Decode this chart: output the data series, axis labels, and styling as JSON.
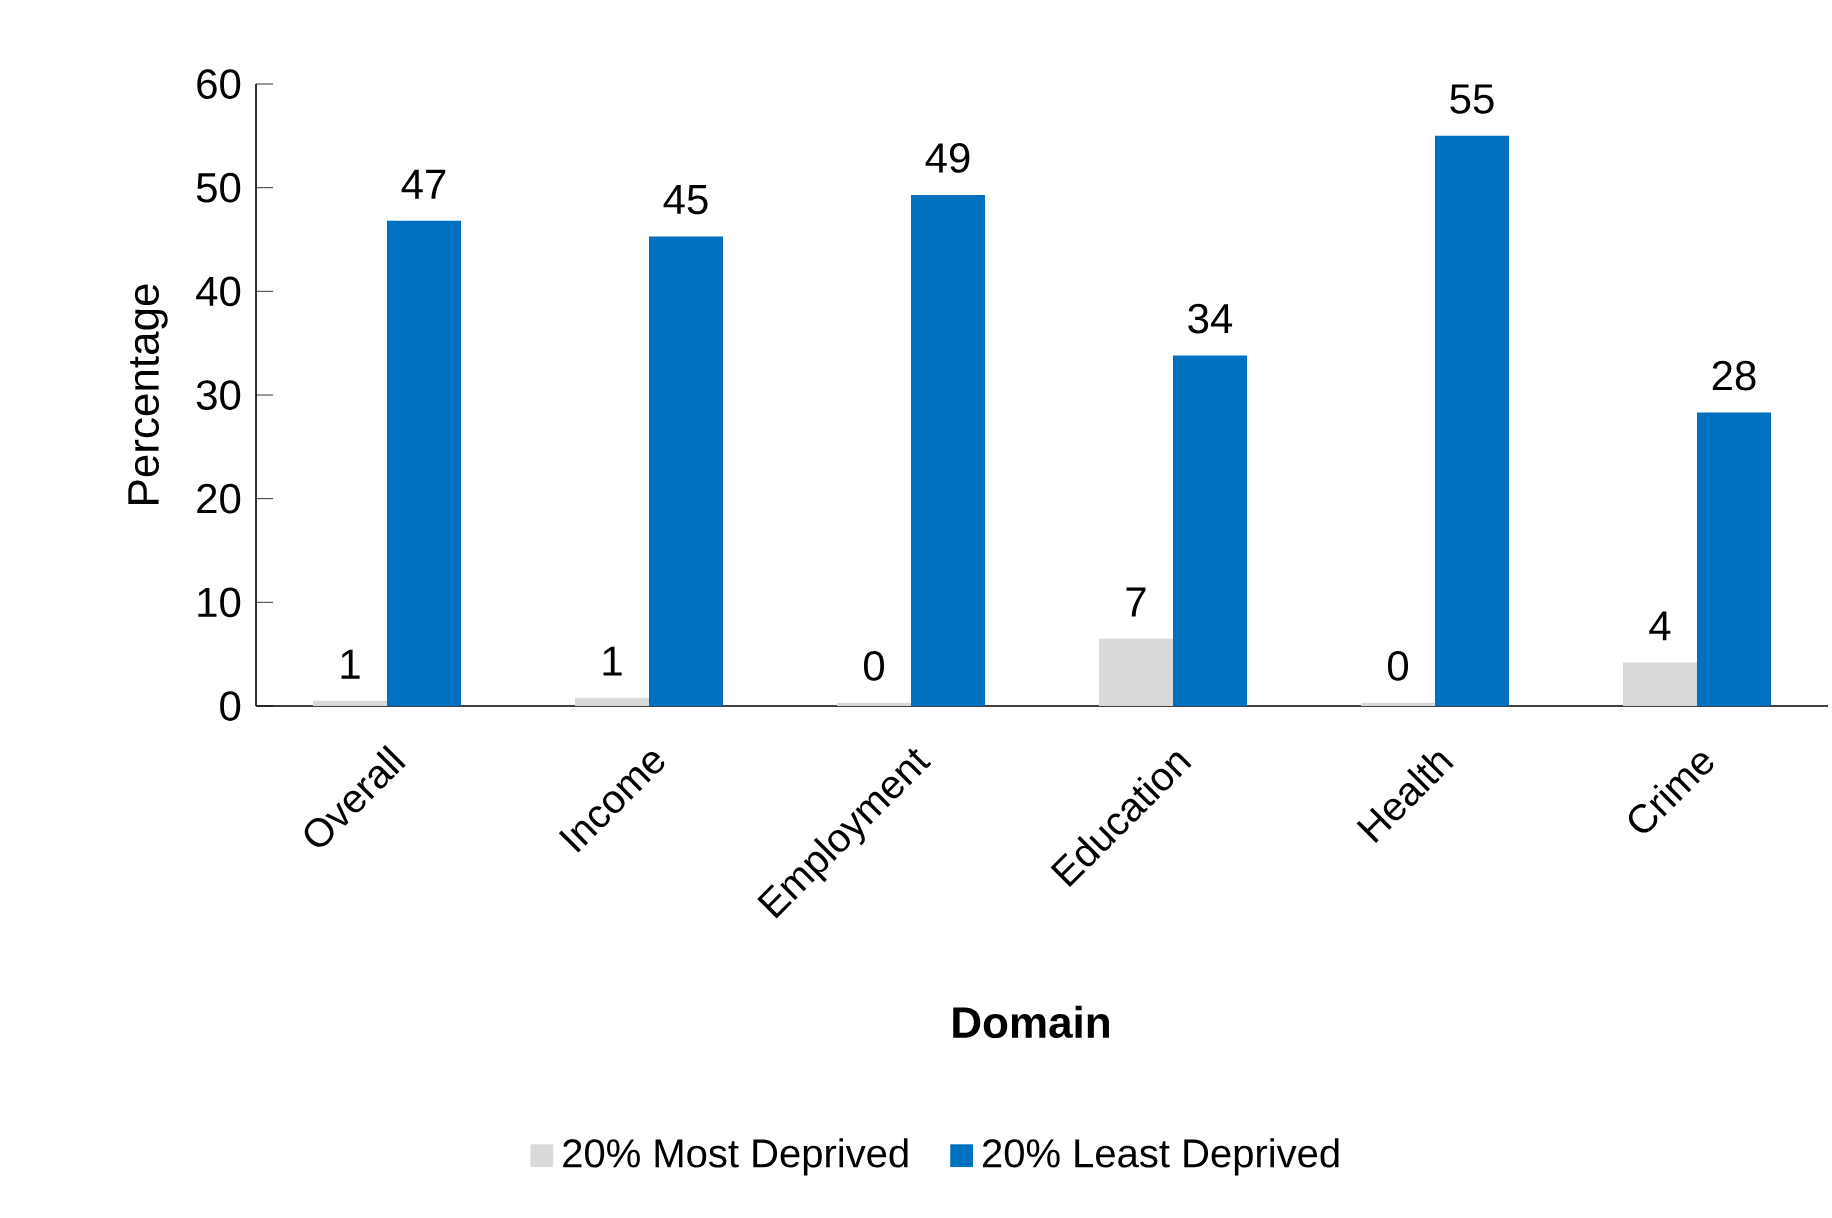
{
  "chart_data": {
    "type": "bar",
    "xlabel": "Domain",
    "ylabel": "Percentage",
    "categories": [
      "Overall",
      "Income",
      "Employment",
      "Education",
      "Health",
      "Crime"
    ],
    "series": [
      {
        "name": "20% Most Deprived",
        "color": "#d9d9d9",
        "values": [
          0.5,
          0.8,
          0.3,
          6.5,
          0.3,
          4.2
        ],
        "value_labels": [
          "1",
          "1",
          "0",
          "7",
          "0",
          "4"
        ]
      },
      {
        "name": "20% Least Deprived",
        "color": "#0070c0",
        "values": [
          46.8,
          45.3,
          49.3,
          33.8,
          55.0,
          28.3
        ],
        "value_labels": [
          "47",
          "45",
          "49",
          "34",
          "55",
          "28"
        ]
      }
    ],
    "ylim": [
      0,
      60
    ],
    "yticks": [
      0,
      10,
      20,
      30,
      40,
      50,
      60
    ],
    "grid": false,
    "legend": "bottom"
  }
}
